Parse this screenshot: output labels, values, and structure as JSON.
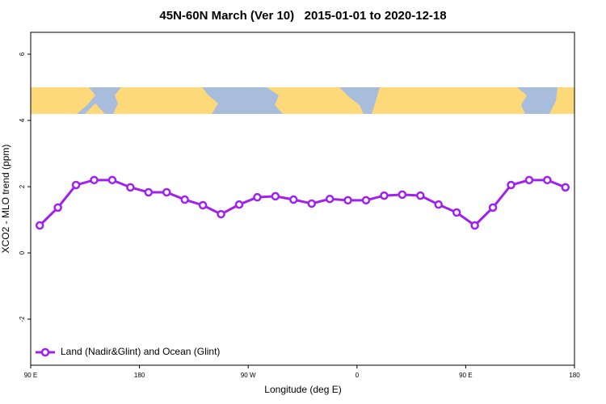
{
  "chart_data": {
    "type": "line",
    "title": "45N-60N March (Ver 10)   2015-01-01 to 2020-12-18",
    "x_label": "Longitude (deg E)",
    "y_label": "XCO2 - MLO trend (ppm)",
    "x": [
      97.5,
      112.5,
      127.5,
      142.5,
      157.5,
      172.5,
      187.5,
      202.5,
      217.5,
      232.5,
      247.5,
      262.5,
      277.5,
      292.5,
      307.5,
      322.5,
      337.5,
      352.5,
      367.5,
      382.5,
      397.5,
      412.5,
      427.5,
      442.5,
      457.5,
      472.5,
      487.5,
      502.5,
      517.5,
      532.5
    ],
    "series": [
      {
        "name": "Land (Nadir&Glint) and Ocean (Glint)",
        "color": "#a020f0",
        "values": [
          0.83,
          1.37,
          2.05,
          2.2,
          2.2,
          1.98,
          1.83,
          1.83,
          1.61,
          1.44,
          1.17,
          1.46,
          1.68,
          1.71,
          1.61,
          1.49,
          1.63,
          1.59,
          1.59,
          1.73,
          1.76,
          1.73,
          1.46,
          1.22,
          0.83,
          1.37,
          2.05,
          2.2,
          2.2,
          1.98
        ]
      }
    ],
    "xlim": [
      90,
      540
    ],
    "xticks": [
      {
        "value": 90,
        "label": "90 E"
      },
      180,
      {
        "value": 270,
        "label": "90 W"
      },
      {
        "value": 360,
        "label": "0"
      },
      {
        "value": 450,
        "label": "90 E"
      },
      {
        "value": 540,
        "label": "180"
      }
    ],
    "ylim": [
      -3.39,
      6.66
    ],
    "yticks": [
      -2,
      0,
      2,
      4,
      6
    ],
    "legend": "bottom-left"
  }
}
